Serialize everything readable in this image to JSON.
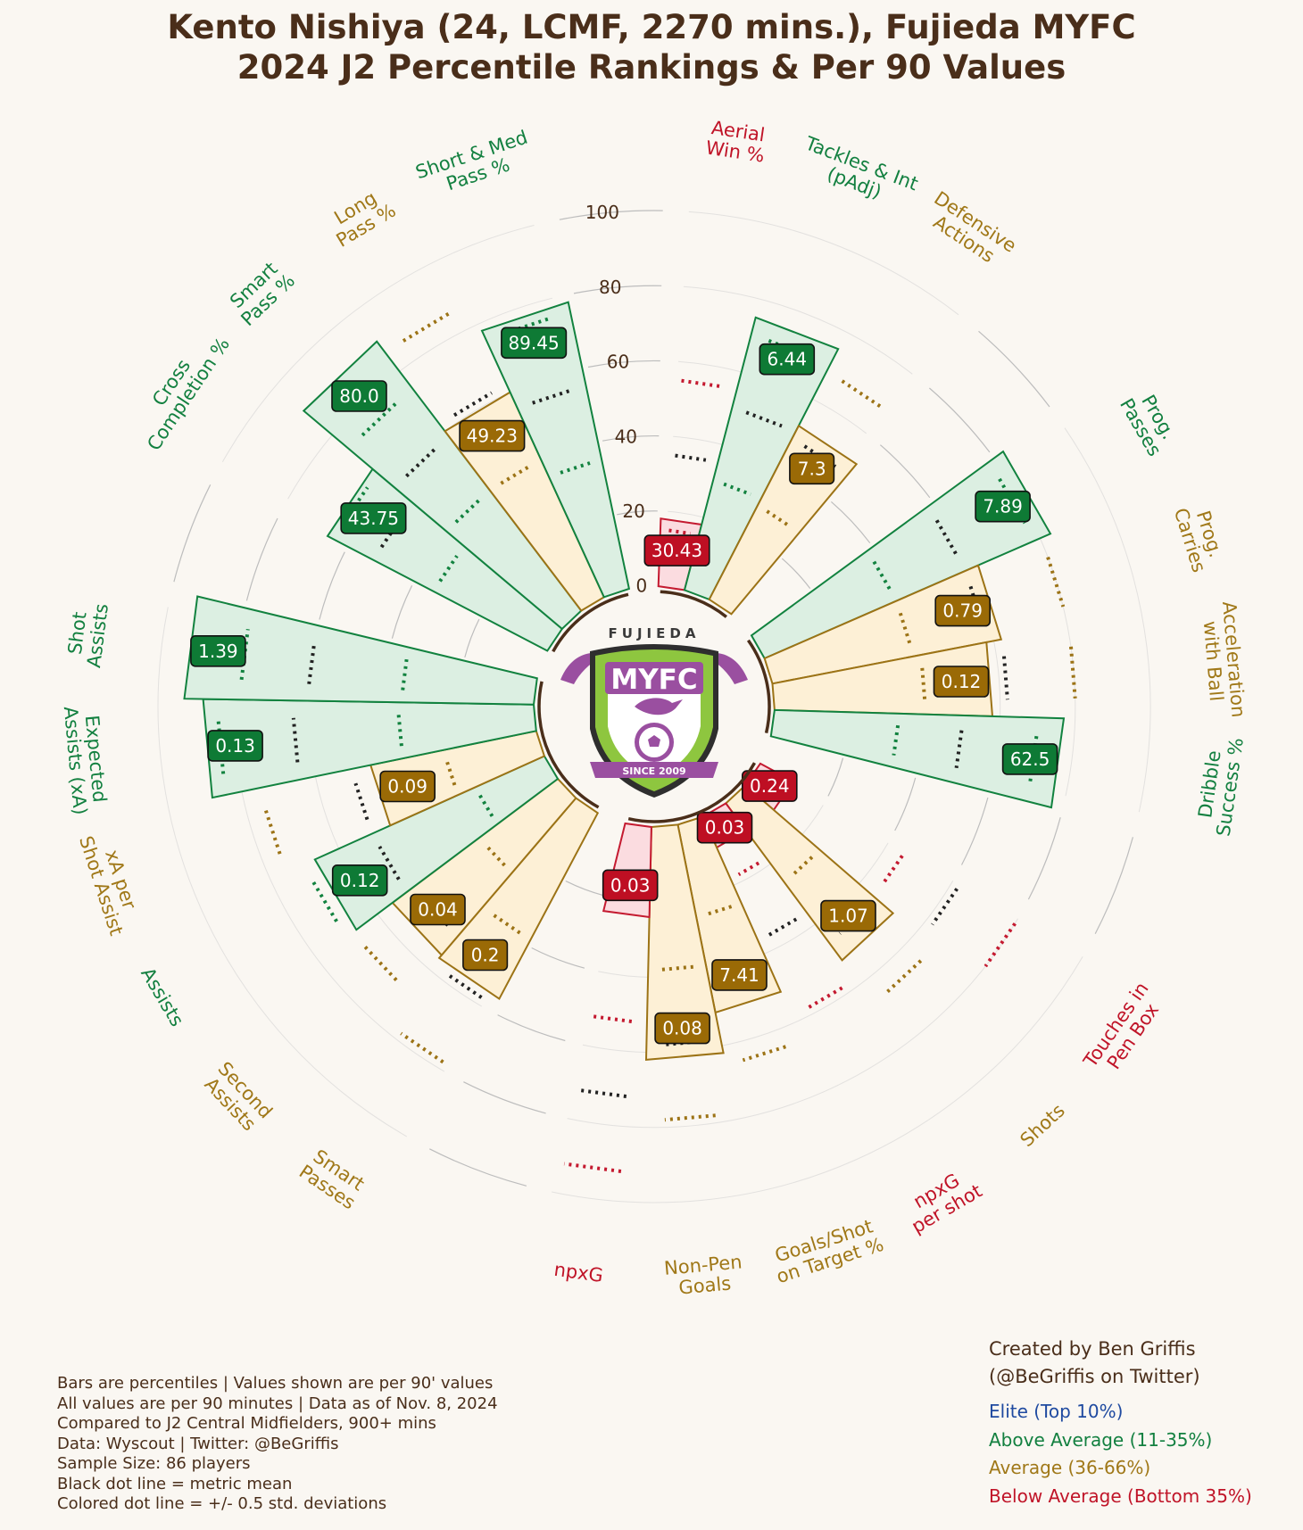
{
  "title": {
    "line1": "Kento Nishiya (24, LCMF, 2270 mins.), Fujieda MYFC",
    "line2": "2024 J2 Percentile Rankings & Per 90 Values"
  },
  "logo": {
    "top_text": "FUJIEDA",
    "name": "MYFC",
    "since": "SINCE 2009"
  },
  "notes": [
    "Bars are percentiles | Values shown are per 90' values",
    "All values are per 90 minutes | Data as of Nov. 8, 2024",
    "Compared to J2 Central Midfielders, 900+ mins",
    "Data: Wyscout | Twitter: @BeGriffis",
    "Sample Size: 86 players",
    "Black dot line = metric mean",
    "Colored dot line = +/- 0.5 std. deviations"
  ],
  "credit": {
    "line1": "Created by Ben Griffis",
    "line2": "(@BeGriffis on Twitter)"
  },
  "legend": [
    {
      "label": "Elite (Top 10%)",
      "color": "#1f4aa0"
    },
    {
      "label": "Above Average (11-35%)",
      "color": "#138040"
    },
    {
      "label": "Average (36-66%)",
      "color": "#a07818"
    },
    {
      "label": "Below Average (Bottom 35%)",
      "color": "#c01428"
    }
  ],
  "colors": {
    "green": {
      "text": "#138040",
      "fill": "#dcefe2",
      "stroke": "#12823f",
      "label_bg": "#0e7a35"
    },
    "gold": {
      "text": "#a07818",
      "fill": "#fdf0d6",
      "stroke": "#9c7316",
      "label_bg": "#9a6a06"
    },
    "red": {
      "text": "#c01428",
      "fill": "#fbdce0",
      "stroke": "#c41a30",
      "label_bg": "#be0f23"
    }
  },
  "chart_data": {
    "type": "polar_bar",
    "rlim": [
      0,
      100
    ],
    "radial_ticks": [
      0,
      20,
      40,
      60,
      80,
      100
    ],
    "groups": [
      {
        "name": "defending",
        "metrics": [
          {
            "label": "Aerial\nWin %",
            "percentile": 18,
            "per90": "30.43",
            "tier": "red",
            "mean_pct": 35,
            "sd_low_pct": 15,
            "sd_high_pct": 55
          },
          {
            "label": "Tackles & Int\n(pAdj)",
            "percentile": 75,
            "per90": "6.44",
            "tier": "green",
            "mean_pct": 50,
            "sd_low_pct": 30,
            "sd_high_pct": 70
          },
          {
            "label": "Defensive\nActions",
            "percentile": 52,
            "per90": "7.3",
            "tier": "gold",
            "mean_pct": 48,
            "sd_low_pct": 28,
            "sd_high_pct": 68
          }
        ]
      },
      {
        "name": "carrying",
        "metrics": [
          {
            "label": "Prog.\nPasses",
            "percentile": 83,
            "per90": "7.89",
            "tier": "green",
            "mean_pct": 58,
            "sd_low_pct": 38,
            "sd_high_pct": 78
          },
          {
            "label": "Prog.\nCarries",
            "percentile": 62,
            "per90": "0.79",
            "tier": "gold",
            "mean_pct": 58,
            "sd_low_pct": 38,
            "sd_high_pct": 80
          },
          {
            "label": "Acceleration\nwith Ball",
            "percentile": 58,
            "per90": "0.12",
            "tier": "gold",
            "mean_pct": 62,
            "sd_low_pct": 40,
            "sd_high_pct": 80
          },
          {
            "label": "Dribble\nSuccess %",
            "percentile": 77,
            "per90": "62.5",
            "tier": "green",
            "mean_pct": 50,
            "sd_low_pct": 33,
            "sd_high_pct": 70
          }
        ]
      },
      {
        "name": "shooting",
        "metrics": [
          {
            "label": "Touches in\nPen Box",
            "percentile": 10,
            "per90": "0.24",
            "tier": "red",
            "mean_pct": 62,
            "sd_low_pct": 45,
            "sd_high_pct": 80
          },
          {
            "label": "Shots",
            "percentile": 52,
            "per90": "1.07",
            "tier": "gold",
            "mean_pct": 46,
            "sd_low_pct": 26,
            "sd_high_pct": 66
          },
          {
            "label": "npxG\nper shot",
            "percentile": 9,
            "per90": "0.03",
            "tier": "red",
            "mean_pct": 36,
            "sd_low_pct": 18,
            "sd_high_pct": 58
          },
          {
            "label": "Goals/Shot\non Target %",
            "percentile": 51,
            "per90": "7.41",
            "tier": "gold",
            "mean_pct": 45,
            "sd_low_pct": 25,
            "sd_high_pct": 65
          },
          {
            "label": "Non-Pen\nGoals",
            "percentile": 62,
            "per90": "0.08",
            "tier": "gold",
            "mean_pct": 58,
            "sd_low_pct": 38,
            "sd_high_pct": 78
          },
          {
            "label": "npxG",
            "percentile": 24,
            "per90": "0.03",
            "tier": "red",
            "mean_pct": 72,
            "sd_low_pct": 52,
            "sd_high_pct": 92
          }
        ]
      },
      {
        "name": "passing",
        "metrics": [
          {
            "label": "Smart\nPasses",
            "percentile": 56,
            "per90": "0.2",
            "tier": "gold",
            "mean_pct": 58,
            "sd_low_pct": 38,
            "sd_high_pct": 78
          },
          {
            "label": "Second\nAssists",
            "percentile": 55,
            "per90": "0.04",
            "tier": "gold",
            "mean_pct": 48,
            "sd_low_pct": 26,
            "sd_high_pct": 68
          },
          {
            "label": "Assists",
            "percentile": 67,
            "per90": "0.12",
            "tier": "green",
            "mean_pct": 50,
            "sd_low_pct": 20,
            "sd_high_pct": 70
          },
          {
            "label": "xA per\nShot Assist",
            "percentile": 45,
            "per90": "0.09",
            "tier": "gold",
            "mean_pct": 50,
            "sd_low_pct": 25,
            "sd_high_pct": 75
          },
          {
            "label": "Expected\nAssists (xA)",
            "percentile": 88,
            "per90": "0.13",
            "tier": "green",
            "mean_pct": 64,
            "sd_low_pct": 36,
            "sd_high_pct": 84
          },
          {
            "label": "Shot\nAssists",
            "percentile": 93,
            "per90": "1.39",
            "tier": "green",
            "mean_pct": 60,
            "sd_low_pct": 35,
            "sd_high_pct": 78
          }
        ]
      },
      {
        "name": "possession",
        "metrics": [
          {
            "label": "Cross\nCompletion %",
            "percentile": 66,
            "per90": "43.75",
            "tier": "green",
            "mean_pct": 52,
            "sd_low_pct": 34,
            "sd_high_pct": 64
          },
          {
            "label": "Smart\nPass %",
            "percentile": 90,
            "per90": "80.0",
            "tier": "green",
            "mean_pct": 58,
            "sd_low_pct": 40,
            "sd_high_pct": 74
          },
          {
            "label": "Long\nPass %",
            "percentile": 60,
            "per90": "49.23",
            "tier": "gold",
            "mean_pct": 62,
            "sd_low_pct": 40,
            "sd_high_pct": 86
          },
          {
            "label": "Short & Med\nPass %",
            "percentile": 78,
            "per90": "89.45",
            "tier": "green",
            "mean_pct": 55,
            "sd_low_pct": 35,
            "sd_high_pct": 75
          }
        ]
      }
    ]
  }
}
